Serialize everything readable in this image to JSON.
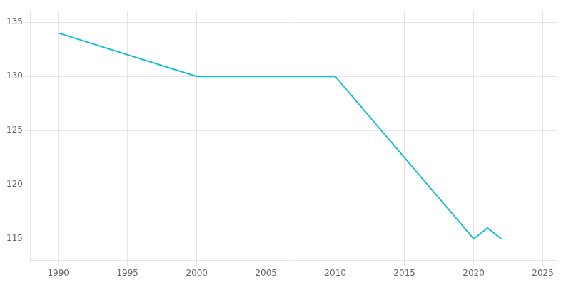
{
  "chart_data": {
    "type": "line",
    "x": [
      1990,
      2000,
      2010,
      2020,
      2021,
      2022
    ],
    "values": [
      134,
      130,
      130,
      115,
      116,
      115
    ],
    "color": "#17becf",
    "xlim": [
      1988,
      2026
    ],
    "ylim": [
      113,
      136
    ],
    "xticks": [
      1990,
      1995,
      2000,
      2005,
      2010,
      2015,
      2020,
      2025
    ],
    "yticks": [
      115,
      120,
      125,
      130,
      135
    ],
    "grid": true
  }
}
